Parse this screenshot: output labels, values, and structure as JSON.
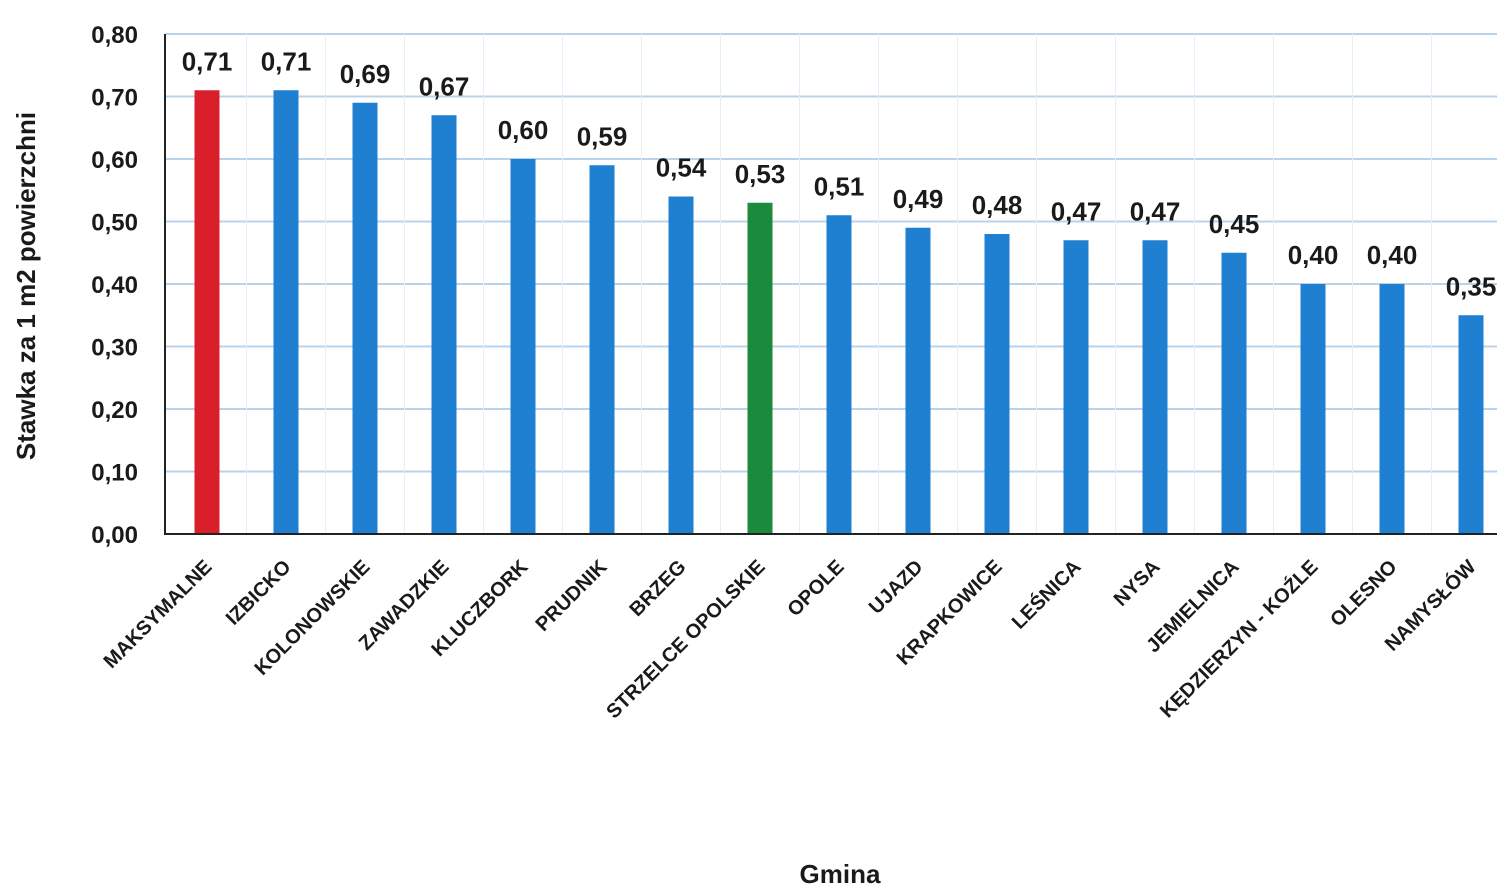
{
  "chart_data": {
    "type": "bar",
    "title": "",
    "xlabel": "Gmina",
    "ylabel": "Stawka za 1 m2 powierzchni",
    "ylim": [
      0,
      0.8
    ],
    "yticks": [
      "0,00",
      "0,10",
      "0,20",
      "0,30",
      "0,40",
      "0,50",
      "0,60",
      "0,70",
      "0,80"
    ],
    "grid": true,
    "legend": "none",
    "categories": [
      "MAKSYMALNE",
      "IZBICKO",
      "KOLONOWSKIE",
      "ZAWADZKIE",
      "KLUCZBORK",
      "PRUDNIK",
      "BRZEG",
      "STRZELCE OPOLSKIE",
      "OPOLE",
      "UJAZD",
      "KRAPKOWICE",
      "LEŚNICA",
      "NYSA",
      "JEMIELNICA",
      "KĘDZIERZYN - KOŹLE",
      "OLESNO",
      "NAMYSŁÓW"
    ],
    "values": [
      0.71,
      0.71,
      0.69,
      0.67,
      0.6,
      0.59,
      0.54,
      0.53,
      0.51,
      0.49,
      0.48,
      0.47,
      0.47,
      0.45,
      0.4,
      0.4,
      0.35
    ],
    "value_labels": [
      "0,71",
      "0,71",
      "0,69",
      "0,67",
      "0,60",
      "0,59",
      "0,54",
      "0,53",
      "0,51",
      "0,49",
      "0,48",
      "0,47",
      "0,47",
      "0,45",
      "0,40",
      "0,40",
      "0,35"
    ],
    "colors": {
      "default": "#1f7fd0",
      "maximum": "#d9202a",
      "highlight": "#1a8a3c",
      "grid": "#b9d3ea",
      "axis": "#222222"
    },
    "bar_colors": [
      "maximum",
      "default",
      "default",
      "default",
      "default",
      "default",
      "default",
      "highlight",
      "default",
      "default",
      "default",
      "default",
      "default",
      "default",
      "default",
      "default",
      "default"
    ]
  }
}
